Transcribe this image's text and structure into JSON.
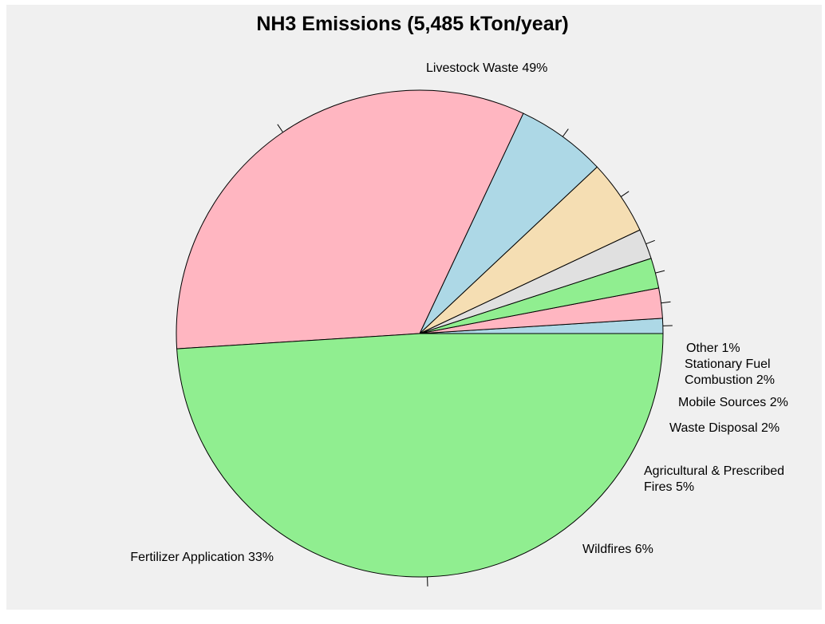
{
  "chart_data": {
    "type": "pie",
    "title": "NH3 Emissions (5,485 kTon/year)",
    "slices": [
      {
        "label": "Livestock Waste 49%",
        "value": 49,
        "color": "#90ee90",
        "label_lines": [
          "Livestock Waste 49%"
        ]
      },
      {
        "label": "Fertilizer Application 33%",
        "value": 33,
        "color": "#ffb6c1",
        "label_lines": [
          "Fertilizer Application 33%"
        ]
      },
      {
        "label": "Wildfires 6%",
        "value": 6,
        "color": "#add8e6",
        "label_lines": [
          "Wildfires 6%"
        ]
      },
      {
        "label": "Agricultural & Prescribed Fires 5%",
        "value": 5,
        "color": "#f5deb3",
        "label_lines": [
          "Agricultural & Prescribed",
          "Fires 5%"
        ]
      },
      {
        "label": "Waste Disposal 2%",
        "value": 2,
        "color": "#e0e0e0",
        "label_lines": [
          "Waste Disposal 2%"
        ]
      },
      {
        "label": "Mobile Sources 2%",
        "value": 2,
        "color": "#90ee90",
        "label_lines": [
          "Mobile Sources 2%"
        ]
      },
      {
        "label": "Stationary Fuel Combustion 2%",
        "value": 2,
        "color": "#ffb6c1",
        "label_lines": [
          "Stationary Fuel",
          "Combustion 2%"
        ]
      },
      {
        "label": "Other 1%",
        "value": 1,
        "color": "#add8e6",
        "label_lines": [
          "Other 1%"
        ]
      }
    ],
    "legend": "none",
    "labels": "outside with leader lines"
  }
}
